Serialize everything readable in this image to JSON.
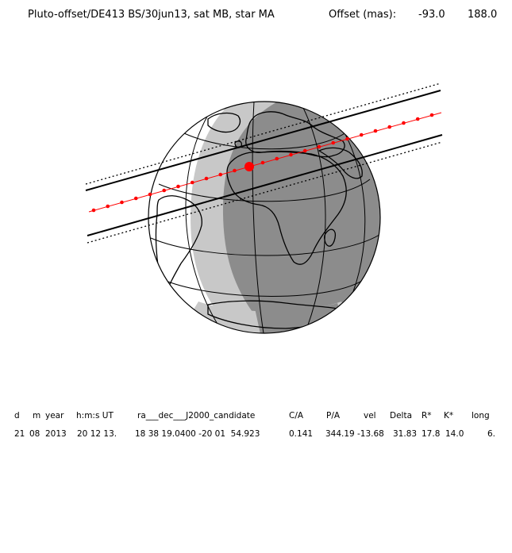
{
  "header": {
    "title": "Pluto-offset/DE413 BS/30jun13, sat MB, star MA",
    "offset_label": "Offset (mas):",
    "offset_ra": "-93.0",
    "offset_dec": "188.0"
  },
  "table": {
    "headers": [
      "d",
      "m",
      "year",
      "h:m:s UT",
      "ra___dec___J2000_candidate",
      "C/A",
      "P/A",
      "vel",
      "Delta",
      "R*",
      "K*",
      "long"
    ],
    "values": [
      "21",
      "08",
      "2013",
      "20 12 13.",
      "18 38 19.0400 -20 01  54.923",
      "0.141",
      "344.19",
      "-13.68",
      "31.83",
      "17.8",
      "14.0",
      "6."
    ]
  },
  "colors": {
    "night": "#8c8c8c",
    "twilight": "#c8c8c8",
    "day": "#ffffff",
    "track": "#ff0000",
    "lines": "#000000"
  }
}
